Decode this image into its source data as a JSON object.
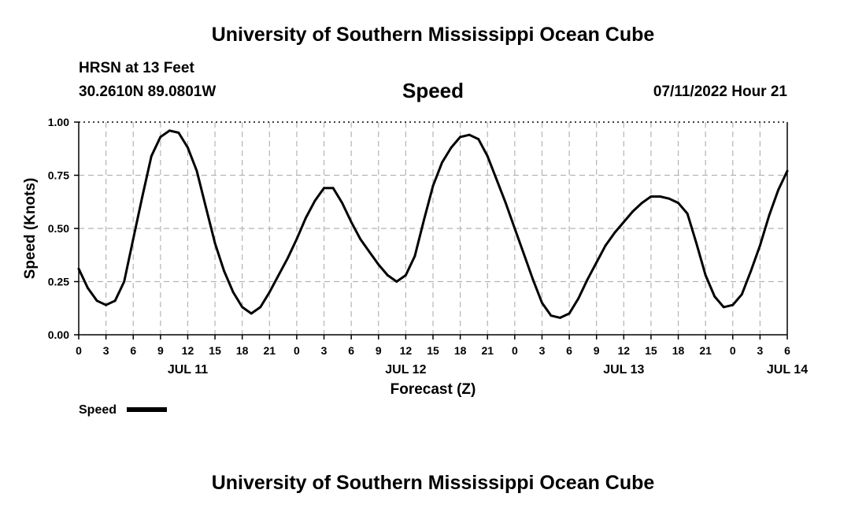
{
  "header": {
    "top_title": "University of Southern Mississippi Ocean Cube",
    "station": "HRSN at 13 Feet",
    "coords": "30.2610N  89.0801W",
    "run_time": "07/11/2022 Hour 21",
    "bottom_title": "University of Southern Mississippi Ocean Cube"
  },
  "chart_data": {
    "type": "line",
    "title": "Speed",
    "xlabel": "Forecast (Z)",
    "ylabel": "Speed (Knots)",
    "x_unit": "hours since 07/11/2022 00Z",
    "xlim": [
      0,
      78
    ],
    "ylim": [
      0,
      1
    ],
    "grid": true,
    "yticks": [
      "0.00",
      "0.25",
      "0.50",
      "0.75",
      "1.00"
    ],
    "xtick_labels": [
      "0",
      "3",
      "6",
      "9",
      "12",
      "15",
      "18",
      "21",
      "0",
      "3",
      "6",
      "9",
      "12",
      "15",
      "18",
      "21",
      "0",
      "3",
      "6",
      "9",
      "12",
      "15",
      "18",
      "21",
      "0",
      "3",
      "6"
    ],
    "date_labels": [
      {
        "text": "JUL 11",
        "x": 12
      },
      {
        "text": "JUL 12",
        "x": 36
      },
      {
        "text": "JUL 13",
        "x": 60
      },
      {
        "text": "JUL 14",
        "x": 78
      }
    ],
    "legend": {
      "label": "Speed",
      "color": "#000000",
      "position": "bottom-left"
    },
    "series": [
      {
        "name": "Speed",
        "color": "#000000",
        "x": [
          0,
          1,
          2,
          3,
          4,
          5,
          6,
          7,
          8,
          9,
          10,
          11,
          12,
          13,
          14,
          15,
          16,
          17,
          18,
          19,
          20,
          21,
          22,
          23,
          24,
          25,
          26,
          27,
          28,
          29,
          30,
          31,
          32,
          33,
          34,
          35,
          36,
          37,
          38,
          39,
          40,
          41,
          42,
          43,
          44,
          45,
          46,
          47,
          48,
          49,
          50,
          51,
          52,
          53,
          54,
          55,
          56,
          57,
          58,
          59,
          60,
          61,
          62,
          63,
          64,
          65,
          66,
          67,
          68,
          69,
          70,
          71,
          72,
          73,
          74,
          75,
          76,
          77,
          78
        ],
        "y": [
          0.31,
          0.22,
          0.16,
          0.14,
          0.16,
          0.25,
          0.45,
          0.65,
          0.84,
          0.93,
          0.96,
          0.95,
          0.88,
          0.77,
          0.6,
          0.43,
          0.3,
          0.2,
          0.13,
          0.1,
          0.13,
          0.2,
          0.28,
          0.36,
          0.45,
          0.55,
          0.63,
          0.69,
          0.69,
          0.62,
          0.53,
          0.45,
          0.39,
          0.33,
          0.28,
          0.25,
          0.28,
          0.37,
          0.54,
          0.7,
          0.81,
          0.88,
          0.93,
          0.94,
          0.92,
          0.84,
          0.73,
          0.62,
          0.5,
          0.38,
          0.26,
          0.15,
          0.09,
          0.08,
          0.1,
          0.17,
          0.26,
          0.34,
          0.42,
          0.48,
          0.53,
          0.58,
          0.62,
          0.65,
          0.65,
          0.64,
          0.62,
          0.57,
          0.43,
          0.28,
          0.18,
          0.13,
          0.14,
          0.19,
          0.3,
          0.42,
          0.56,
          0.68,
          0.77
        ]
      }
    ]
  }
}
